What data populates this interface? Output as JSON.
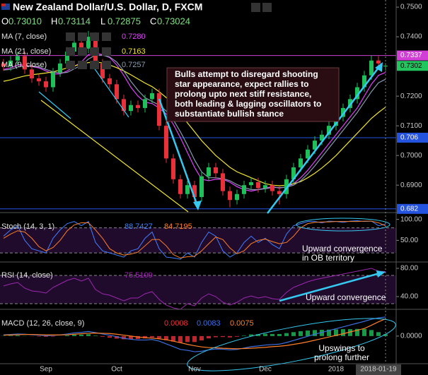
{
  "chart_data": [
    {
      "type": "candlestick",
      "title": "New Zealand Dollar/U.S. Dollar, D, FXCM",
      "ohlc": [
        {
          "key": "O",
          "text": "0.73010"
        },
        {
          "key": "H",
          "text": "0.73114"
        },
        {
          "key": "L",
          "text": "0.72875"
        },
        {
          "key": "C",
          "text": "0.73024"
        }
      ],
      "categories": [
        null,
        null,
        null,
        null,
        null,
        null,
        "Sep",
        null,
        null,
        null,
        null,
        null,
        null,
        null,
        null,
        null,
        "Oct",
        null,
        null,
        null,
        null,
        null,
        null,
        null,
        null,
        null,
        null,
        "Nov",
        null,
        null,
        null,
        null,
        null,
        null,
        null,
        null,
        null,
        "Dec",
        null,
        null,
        null,
        null,
        null,
        null,
        null,
        null,
        null,
        "2018",
        null,
        null,
        null,
        null,
        null,
        "2018-01-19",
        null
      ],
      "open": [
        0.731,
        0.73,
        0.732,
        0.7335,
        0.729,
        0.726,
        0.725,
        0.723,
        0.728,
        0.731,
        0.735,
        0.738,
        0.736,
        0.74,
        0.731,
        0.726,
        0.724,
        0.719,
        0.715,
        0.717,
        0.716,
        0.719,
        0.721,
        0.71,
        0.699,
        0.692,
        0.687,
        0.69,
        0.686,
        0.693,
        0.696,
        0.694,
        0.688,
        0.685,
        0.687,
        0.69,
        0.691,
        0.689,
        0.69,
        0.688,
        0.687,
        0.692,
        0.696,
        0.699,
        0.702,
        0.705,
        0.707,
        0.71,
        0.713,
        0.716,
        0.719,
        0.723,
        0.727,
        0.732,
        0.7301
      ],
      "high": [
        0.7325,
        0.7335,
        0.735,
        0.735,
        0.7305,
        0.7275,
        0.7265,
        0.7295,
        0.7325,
        0.7365,
        0.7395,
        0.7395,
        0.742,
        0.7415,
        0.7325,
        0.7275,
        0.7255,
        0.7205,
        0.7185,
        0.7185,
        0.7205,
        0.7225,
        0.7225,
        0.7115,
        0.7005,
        0.6935,
        0.6915,
        0.6915,
        0.6945,
        0.6975,
        0.6975,
        0.6955,
        0.6895,
        0.6885,
        0.6915,
        0.6925,
        0.6925,
        0.6915,
        0.6915,
        0.6895,
        0.6935,
        0.6975,
        0.7005,
        0.7035,
        0.7065,
        0.7085,
        0.7115,
        0.7145,
        0.7175,
        0.7205,
        0.7245,
        0.7285,
        0.7337,
        0.7335,
        0.73114
      ],
      "low": [
        0.7285,
        0.7285,
        0.7305,
        0.7275,
        0.7245,
        0.7235,
        0.7215,
        0.7215,
        0.7265,
        0.7295,
        0.7335,
        0.7345,
        0.7345,
        0.7295,
        0.7245,
        0.7225,
        0.7175,
        0.7135,
        0.7135,
        0.7145,
        0.7145,
        0.7175,
        0.7085,
        0.6975,
        0.6905,
        0.6855,
        0.6855,
        0.6845,
        0.6845,
        0.6915,
        0.6925,
        0.6865,
        0.6825,
        0.6835,
        0.6855,
        0.6885,
        0.6875,
        0.6875,
        0.6865,
        0.6835,
        0.6855,
        0.6905,
        0.6945,
        0.6975,
        0.7005,
        0.7035,
        0.7055,
        0.7085,
        0.7115,
        0.7145,
        0.7175,
        0.7215,
        0.7255,
        0.7295,
        0.72875
      ],
      "close": [
        0.73,
        0.732,
        0.7335,
        0.729,
        0.726,
        0.725,
        0.723,
        0.728,
        0.731,
        0.735,
        0.738,
        0.736,
        0.74,
        0.731,
        0.726,
        0.724,
        0.719,
        0.715,
        0.717,
        0.716,
        0.719,
        0.721,
        0.71,
        0.699,
        0.692,
        0.687,
        0.69,
        0.686,
        0.693,
        0.696,
        0.694,
        0.688,
        0.685,
        0.687,
        0.69,
        0.691,
        0.689,
        0.69,
        0.688,
        0.687,
        0.692,
        0.696,
        0.699,
        0.702,
        0.705,
        0.707,
        0.71,
        0.713,
        0.716,
        0.719,
        0.723,
        0.727,
        0.732,
        0.731,
        0.73024
      ],
      "up_color": "#1fbf5a",
      "down_color": "#e8313a",
      "series": [
        {
          "name": "MA (7, close)",
          "color": "#e040fb",
          "value_label": "0.7280",
          "values": [
            0.729,
            0.7295,
            0.7305,
            0.7305,
            0.73,
            0.7295,
            0.7285,
            0.7275,
            0.7275,
            0.7285,
            0.73,
            0.7315,
            0.734,
            0.7345,
            0.734,
            0.733,
            0.7305,
            0.727,
            0.723,
            0.72,
            0.718,
            0.7175,
            0.716,
            0.714,
            0.7105,
            0.706,
            0.701,
            0.696,
            0.692,
            0.6915,
            0.692,
            0.692,
            0.691,
            0.6895,
            0.6885,
            0.688,
            0.6885,
            0.689,
            0.6895,
            0.689,
            0.6895,
            0.6905,
            0.6925,
            0.695,
            0.698,
            0.701,
            0.704,
            0.707,
            0.71,
            0.713,
            0.716,
            0.72,
            0.724,
            0.727,
            0.728
          ]
        },
        {
          "name": "MA (21, close)",
          "color": "#f2e52e",
          "values": [
            0.725,
            0.7255,
            0.7262,
            0.7268,
            0.7272,
            0.7275,
            0.7278,
            0.7282,
            0.7288,
            0.7295,
            0.7302,
            0.7308,
            0.7313,
            0.7315,
            0.7312,
            0.7305,
            0.7296,
            0.7285,
            0.7272,
            0.7258,
            0.7244,
            0.7232,
            0.7215,
            0.7195,
            0.717,
            0.714,
            0.711,
            0.708,
            0.705,
            0.7025,
            0.7,
            0.698,
            0.696,
            0.6945,
            0.6935,
            0.6925,
            0.6915,
            0.6905,
            0.69,
            0.6898,
            0.69,
            0.6905,
            0.6912,
            0.6925,
            0.694,
            0.6958,
            0.6978,
            0.7,
            0.7025,
            0.705,
            0.7075,
            0.71,
            0.7125,
            0.7145,
            0.7163
          ]
        },
        {
          "name": "MA (9, close)",
          "color": "#8a9bb0",
          "values": [
            0.7288,
            0.729,
            0.7298,
            0.7302,
            0.7302,
            0.7298,
            0.729,
            0.7282,
            0.7278,
            0.728,
            0.7292,
            0.7305,
            0.7325,
            0.7338,
            0.7338,
            0.7332,
            0.7315,
            0.7285,
            0.725,
            0.722,
            0.7195,
            0.7182,
            0.717,
            0.715,
            0.712,
            0.708,
            0.7035,
            0.6985,
            0.6945,
            0.6925,
            0.6925,
            0.6922,
            0.6915,
            0.6902,
            0.6892,
            0.6885,
            0.6885,
            0.6888,
            0.6892,
            0.6892,
            0.6893,
            0.69,
            0.6915,
            0.6938,
            0.6965,
            0.6995,
            0.7025,
            0.7055,
            0.7085,
            0.7115,
            0.7145,
            0.718,
            0.7215,
            0.7245,
            0.7257
          ]
        }
      ],
      "ylim": [
        0.681,
        0.7524
      ],
      "yticks": [
        {
          "value": 0.69,
          "label": "0.6900"
        },
        {
          "value": 0.7,
          "label": "0.7000"
        },
        {
          "value": 0.71,
          "label": "0.7100"
        },
        {
          "value": 0.72,
          "label": "0.7200"
        },
        {
          "value": 0.74,
          "label": "0.7400"
        },
        {
          "value": 0.75,
          "label": "0.7500"
        }
      ],
      "price_tags": [
        {
          "value": 0.7337,
          "color": "#d13fd6",
          "line": true
        },
        {
          "value": 0.7302,
          "color": "#22c55e",
          "line": false
        },
        {
          "value": 0.706,
          "color": "#2453e0",
          "line": true
        },
        {
          "value": 0.682,
          "color": "#2453e0",
          "line": true
        }
      ],
      "annotation": [
        "Bulls attempt to disregard shooting",
        "star appearance, expect rallies to",
        "prolong upto next stiff resistance,",
        "both leading & lagging oscillators to",
        "substantiate bullish stance"
      ]
    },
    {
      "type": "line",
      "title": "Stoch (14, 3, 1)",
      "ylim": [
        0,
        113
      ],
      "yticks": [
        {
          "value": 100,
          "label": "100.00"
        },
        {
          "value": 50,
          "label": "50.00"
        }
      ],
      "band": [
        20,
        80
      ],
      "series": [
        {
          "color": "#3f7fff",
          "values": [
            60,
            75,
            85,
            50,
            30,
            25,
            20,
            55,
            75,
            90,
            95,
            85,
            95,
            45,
            25,
            20,
            15,
            10,
            25,
            30,
            55,
            70,
            30,
            10,
            8,
            5,
            20,
            10,
            45,
            70,
            60,
            25,
            10,
            20,
            45,
            60,
            45,
            55,
            40,
            30,
            65,
            85,
            90,
            95,
            95,
            92,
            96,
            95,
            93,
            96,
            97,
            95,
            96,
            85,
            88.7427
          ]
        },
        {
          "color": "#ff7f27",
          "values": [
            55,
            65,
            73,
            70,
            55,
            35,
            25,
            33,
            50,
            73,
            87,
            92,
            92,
            75,
            55,
            30,
            20,
            15,
            17,
            22,
            37,
            52,
            52,
            37,
            16,
            8,
            11,
            12,
            25,
            42,
            58,
            52,
            32,
            18,
            25,
            42,
            50,
            53,
            47,
            42,
            45,
            60,
            80,
            90,
            93,
            94,
            94,
            95,
            95,
            95,
            95,
            96,
            96,
            92,
            84.7195
          ]
        }
      ],
      "annotation": [
        "Upward convergence",
        "in OB territory"
      ]
    },
    {
      "type": "line",
      "title": "RSI (14, close)",
      "ylim": [
        23,
        88
      ],
      "yticks": [
        {
          "value": 80,
          "label": "80.00"
        },
        {
          "value": 40,
          "label": "40.00"
        }
      ],
      "band": [
        30,
        70
      ],
      "series": [
        {
          "color": "#9c27b0",
          "values": [
            55,
            58,
            60,
            52,
            48,
            47,
            45,
            53,
            58,
            63,
            66,
            62,
            66,
            50,
            44,
            42,
            38,
            34,
            38,
            38,
            44,
            47,
            36,
            28,
            24,
            22,
            30,
            27,
            38,
            44,
            40,
            32,
            28,
            32,
            38,
            41,
            38,
            40,
            37,
            36,
            46,
            53,
            57,
            61,
            64,
            66,
            68,
            70,
            72,
            74,
            76,
            78,
            80,
            76,
            75.5109
          ]
        }
      ],
      "annotation": [
        "Upward convergence"
      ]
    },
    {
      "type": "macd",
      "title": "MACD (12, 26, close, 9)",
      "ylim": [
        -0.012,
        0.011
      ],
      "yticks": [
        {
          "value": 0,
          "label": "0.0000"
        }
      ],
      "histogram": {
        "color": "#e8313a",
        "positive_color": "#1fbf5a",
        "values": [
          0.0001,
          0.0002,
          0.0003,
          0.0001,
          -0.0001,
          -0.0002,
          -0.0003,
          -0.0002,
          0,
          0.0003,
          0.0006,
          0.0006,
          0.0008,
          0.0002,
          -0.0003,
          -0.0007,
          -0.0011,
          -0.0014,
          -0.0014,
          -0.0013,
          -0.001,
          -0.0006,
          -0.001,
          -0.0018,
          -0.0024,
          -0.0029,
          -0.0026,
          -0.0026,
          -0.0019,
          -0.001,
          -0.0005,
          -0.0004,
          -0.0006,
          -0.0003,
          0.0002,
          0.0007,
          0.0008,
          0.001,
          0.0009,
          0.0009,
          0.0013,
          0.0017,
          0.0021,
          0.0024,
          0.0026,
          0.0027,
          0.0028,
          0.0029,
          0.003,
          0.003,
          0.0031,
          0.0031,
          0.0026,
          0.0017,
          0.0008
        ]
      },
      "series": [
        {
          "color": "#3b6fe0",
          "values": [
            0.0005,
            0.0007,
            0.0009,
            0.0008,
            0.0006,
            0.0004,
            0.0002,
            0.0003,
            0.0005,
            0.0009,
            0.0014,
            0.0016,
            0.002,
            0.0015,
            0.0009,
            0.0004,
            -0.0003,
            -0.001,
            -0.0014,
            -0.0017,
            -0.0017,
            -0.0015,
            -0.0022,
            -0.0034,
            -0.0046,
            -0.0058,
            -0.0062,
            -0.0068,
            -0.0066,
            -0.006,
            -0.0056,
            -0.0057,
            -0.006,
            -0.0058,
            -0.0052,
            -0.0046,
            -0.0043,
            -0.0039,
            -0.0037,
            -0.0035,
            -0.0028,
            -0.0019,
            -0.001,
            -0.0001,
            0.0008,
            0.0016,
            0.0024,
            0.0032,
            0.004,
            0.0048,
            0.0056,
            0.0064,
            0.0073,
            0.0079,
            0.0083
          ]
        },
        {
          "color": "#ff7f27",
          "values": [
            0.0004,
            0.0005,
            0.0006,
            0.0007,
            0.0007,
            0.0006,
            0.0005,
            0.0005,
            0.0005,
            0.0006,
            0.0008,
            0.001,
            0.0012,
            0.0013,
            0.0012,
            0.0011,
            0.0008,
            0.0004,
            0.0,
            -0.0004,
            -0.0007,
            -0.0009,
            -0.0012,
            -0.0016,
            -0.0022,
            -0.0029,
            -0.0036,
            -0.0042,
            -0.0047,
            -0.005,
            -0.0051,
            -0.0053,
            -0.0054,
            -0.0055,
            -0.0054,
            -0.0053,
            -0.0051,
            -0.0049,
            -0.0046,
            -0.0044,
            -0.0041,
            -0.0036,
            -0.0031,
            -0.0025,
            -0.0018,
            -0.0011,
            -0.0004,
            0.0003,
            0.001,
            0.0018,
            0.0025,
            0.0033,
            0.0047,
            0.0062,
            0.0075
          ]
        }
      ],
      "annotation": [
        "Upswings to",
        "prolong further"
      ]
    }
  ]
}
